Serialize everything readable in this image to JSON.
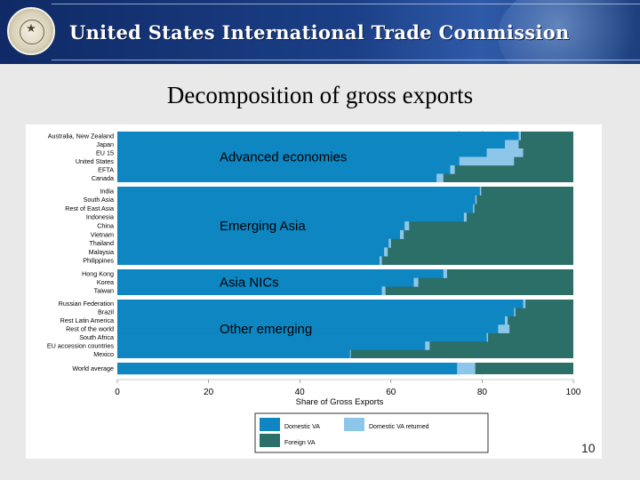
{
  "header": {
    "org_title": "United States International Trade Commission",
    "seal_icon": "usitc-seal-icon"
  },
  "slide": {
    "title": "Decomposition of gross exports",
    "page_number": "10"
  },
  "colors": {
    "domestic_va": "#0e86c2",
    "domestic_va_returned": "#8cc7ea",
    "foreign_va": "#2c6e68"
  },
  "chart_data": {
    "type": "bar",
    "orientation": "horizontal",
    "stacked": true,
    "xlabel": "Share of Gross Exports",
    "xlim": [
      0,
      100
    ],
    "xticks": [
      0,
      20,
      40,
      60,
      80,
      100
    ],
    "legend": {
      "placement": "bottom",
      "entries": [
        "Domestic VA",
        "Domestic VA returned",
        "Foreign VA"
      ]
    },
    "groups": [
      {
        "label": "Advanced economies",
        "categories": [
          "Australia, New Zealand",
          "Japan",
          "EU 15",
          "United States",
          "EFTA",
          "Canada"
        ],
        "domestic_va": [
          88,
          85,
          81,
          75,
          73,
          70
        ],
        "domestic_va_returned": [
          0.5,
          3,
          8,
          12,
          1,
          1.5
        ]
      },
      {
        "label": "Emerging Asia",
        "categories": [
          "India",
          "South Asia",
          "Rest of East Asia",
          "Indonesia",
          "China",
          "Vietnam",
          "Thailand",
          "Malaysia",
          "Philippines"
        ],
        "domestic_va": [
          79.5,
          78.5,
          78,
          76,
          63,
          62,
          59.5,
          58.5,
          57.5
        ],
        "domestic_va_returned": [
          0.3,
          0.3,
          0.3,
          0.6,
          1,
          0.8,
          0.5,
          0.8,
          0.5
        ]
      },
      {
        "label": "Asia NICs",
        "categories": [
          "Hong Kong",
          "Korea",
          "Taiwan"
        ],
        "domestic_va": [
          71.5,
          65,
          58
        ],
        "domestic_va_returned": [
          0.8,
          1,
          0.8
        ]
      },
      {
        "label": "Other emerging",
        "categories": [
          "Russian Federation",
          "Brazil",
          "Rest Latin America",
          "Rest of the world",
          "South Africa",
          "EU accession countries",
          "Mexico"
        ],
        "domestic_va": [
          89,
          87,
          85,
          83.5,
          81,
          67.5,
          51
        ],
        "domestic_va_returned": [
          0.5,
          0.3,
          0.6,
          2.5,
          0.3,
          1,
          0.2
        ]
      },
      {
        "label": "",
        "categories": [
          "World average"
        ],
        "domestic_va": [
          74.5
        ],
        "domestic_va_returned": [
          4
        ]
      }
    ]
  }
}
